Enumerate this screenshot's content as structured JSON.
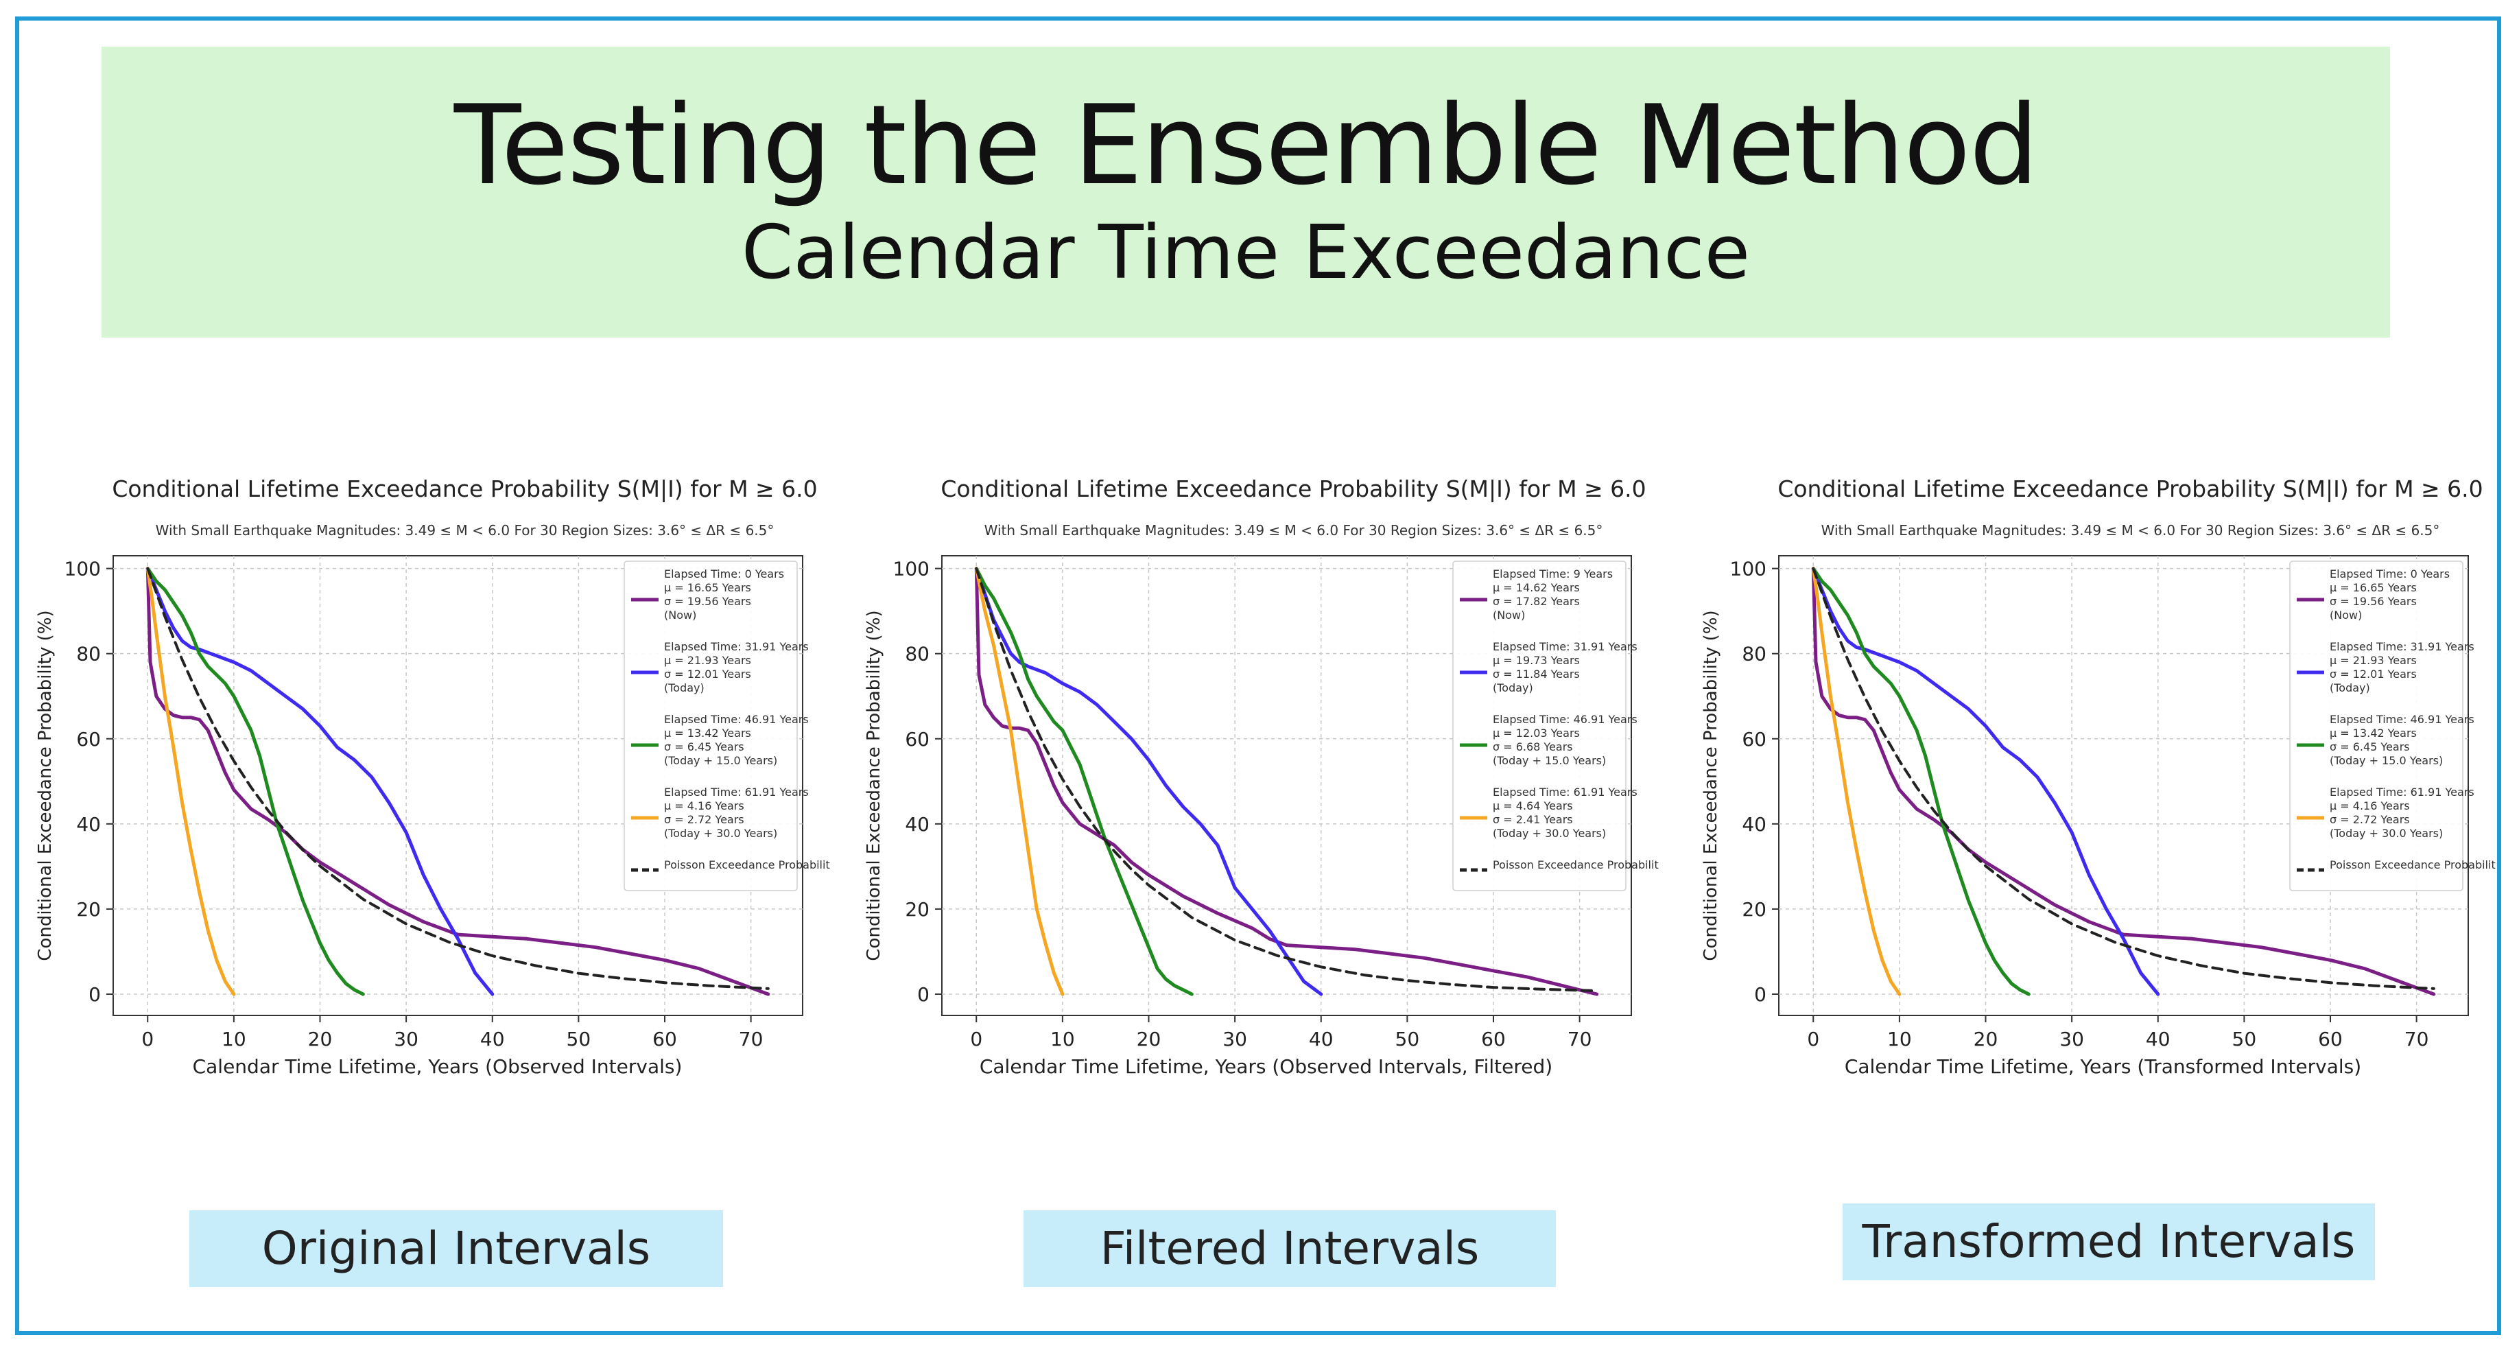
{
  "header": {
    "title": "Testing the Ensemble Method",
    "subtitle": "Calendar Time Exceedance"
  },
  "colors": {
    "banner": "#d6f5d2",
    "frame": "#1f9bd6",
    "label_box": "#c7ecfa",
    "purple": "#7b1f86",
    "blue": "#3f2bf0",
    "green": "#1f8a1f",
    "orange": "#f5a623",
    "poisson": "#222222"
  },
  "panels": [
    {
      "label": "Original Intervals"
    },
    {
      "label": "Filtered Intervals"
    },
    {
      "label": "Transformed Intervals"
    }
  ],
  "chart_data": [
    {
      "type": "line",
      "title": "Conditional Lifetime Exceedance Probability S(M|I) for M ≥ 6.0",
      "subtitle": "With Small Earthquake Magnitudes: 3.49 ≤ M < 6.0  For 30 Region Sizes: 3.6° ≤ ΔR ≤ 6.5°",
      "xlabel": "Calendar Time Lifetime, Years (Observed Intervals)",
      "ylabel": "Conditional Exceedance Probability (%)",
      "xlim": [
        -4,
        76
      ],
      "ylim": [
        -5,
        103
      ],
      "xticks": [
        0,
        10,
        20,
        30,
        40,
        50,
        60,
        70
      ],
      "yticks": [
        0,
        20,
        40,
        60,
        80,
        100
      ],
      "grid": true,
      "legend": "top-right",
      "series": [
        {
          "name": "Elapsed Time: 0 Years",
          "legend_lines": [
            "μ = 16.65 Years",
            "σ = 19.56 Years",
            "(Now)"
          ],
          "color": "purple",
          "dash": false,
          "x": [
            0,
            0.3,
            1,
            2,
            3,
            4,
            5,
            6,
            7,
            8,
            9,
            10,
            12,
            14,
            16,
            18,
            20,
            24,
            28,
            32,
            34,
            36,
            40,
            44,
            48,
            52,
            56,
            60,
            64,
            68,
            70,
            72
          ],
          "y": [
            100,
            78,
            70,
            67,
            65.5,
            65,
            65,
            64.5,
            62,
            57,
            52,
            48,
            43.5,
            41,
            38,
            34,
            31,
            26,
            21,
            17,
            15.5,
            14,
            13.5,
            13,
            12,
            11,
            9.5,
            8,
            6,
            3,
            1.5,
            0
          ]
        },
        {
          "name": "Elapsed Time: 31.91 Years",
          "legend_lines": [
            "μ = 21.93 Years",
            "σ = 12.01 Years",
            "(Today)"
          ],
          "color": "blue",
          "dash": false,
          "x": [
            0,
            1,
            2,
            3,
            4,
            5,
            6,
            8,
            10,
            12,
            14,
            16,
            18,
            20,
            22,
            24,
            26,
            28,
            30,
            32,
            34,
            36,
            38,
            40
          ],
          "y": [
            100,
            95,
            90,
            86,
            83,
            81.5,
            81,
            79.5,
            78,
            76,
            73,
            70,
            67,
            63,
            58,
            55,
            51,
            45,
            38,
            28,
            20,
            13,
            5,
            0
          ]
        },
        {
          "name": "Elapsed Time: 46.91 Years",
          "legend_lines": [
            "μ = 13.42 Years",
            "σ = 6.45 Years",
            "(Today + 15.0 Years)"
          ],
          "color": "green",
          "dash": false,
          "x": [
            0,
            1,
            2,
            3,
            4,
            5,
            6,
            7,
            8,
            9,
            10,
            11,
            12,
            13,
            14,
            15,
            16,
            17,
            18,
            19,
            20,
            21,
            22,
            23,
            24,
            25
          ],
          "y": [
            100,
            97,
            95,
            92,
            89,
            85,
            80,
            77,
            75,
            73,
            70,
            66,
            62,
            56,
            48,
            40,
            34,
            28,
            22,
            17,
            12,
            8,
            5,
            2.5,
            1,
            0
          ]
        },
        {
          "name": "Elapsed Time: 61.91 Years",
          "legend_lines": [
            "μ = 4.16 Years",
            "σ = 2.72 Years",
            "(Today + 30.0 Years)"
          ],
          "color": "orange",
          "dash": false,
          "x": [
            0,
            0.5,
            1,
            2,
            3,
            4,
            5,
            6,
            7,
            8,
            9,
            10
          ],
          "y": [
            100,
            93,
            85,
            70,
            58,
            45,
            34,
            24,
            15,
            8,
            3,
            0
          ]
        },
        {
          "name": "Poisson Exceedance Probability",
          "legend_lines": [],
          "color": "poisson",
          "dash": true,
          "x": [
            0,
            2,
            4,
            6,
            8,
            10,
            12,
            14,
            16,
            18,
            20,
            25,
            30,
            35,
            40,
            45,
            50,
            55,
            60,
            65,
            70,
            72
          ],
          "y": [
            100,
            88.7,
            78.6,
            69.7,
            61.8,
            54.8,
            48.6,
            43.1,
            38.2,
            33.9,
            30.1,
            22.3,
            16.5,
            12.2,
            9.0,
            6.7,
            4.9,
            3.7,
            2.7,
            2.0,
            1.5,
            1.3
          ]
        }
      ]
    },
    {
      "type": "line",
      "title": "Conditional Lifetime Exceedance Probability S(M|I) for M ≥ 6.0",
      "subtitle": "With Small Earthquake Magnitudes: 3.49 ≤ M < 6.0  For 30 Region Sizes: 3.6° ≤ ΔR ≤ 6.5°",
      "xlabel": "Calendar Time Lifetime, Years (Observed Intervals, Filtered)",
      "ylabel": "Conditional Exceedance Probability (%)",
      "xlim": [
        -4,
        76
      ],
      "ylim": [
        -5,
        103
      ],
      "xticks": [
        0,
        10,
        20,
        30,
        40,
        50,
        60,
        70
      ],
      "yticks": [
        0,
        20,
        40,
        60,
        80,
        100
      ],
      "grid": true,
      "legend": "top-right",
      "series": [
        {
          "name": "Elapsed Time: 9 Years",
          "legend_lines": [
            "μ = 14.62 Years",
            "σ = 17.82 Years",
            "(Now)"
          ],
          "color": "purple",
          "dash": false,
          "x": [
            0,
            0.3,
            1,
            2,
            3,
            4,
            5,
            6,
            7,
            8,
            9,
            10,
            12,
            14,
            16,
            18,
            20,
            24,
            28,
            32,
            34,
            36,
            40,
            44,
            48,
            52,
            56,
            60,
            64,
            68,
            70,
            72
          ],
          "y": [
            100,
            75,
            68,
            65,
            63,
            62.5,
            62.5,
            62,
            59,
            54,
            49,
            45,
            40,
            37.5,
            35,
            31,
            28,
            23,
            19,
            15.5,
            13,
            11.5,
            11,
            10.5,
            9.5,
            8.5,
            7,
            5.5,
            4,
            2,
            1,
            0
          ]
        },
        {
          "name": "Elapsed Time: 31.91 Years",
          "legend_lines": [
            "μ = 19.73 Years",
            "σ = 11.84 Years",
            "(Today)"
          ],
          "color": "blue",
          "dash": false,
          "x": [
            0,
            1,
            2,
            3,
            4,
            5,
            6,
            8,
            10,
            12,
            14,
            16,
            18,
            20,
            22,
            24,
            26,
            28,
            30,
            32,
            34,
            36,
            38,
            40
          ],
          "y": [
            100,
            94,
            88,
            84,
            80,
            78,
            77,
            75.5,
            73,
            71,
            68,
            64,
            60,
            55,
            49,
            44,
            40,
            35,
            25,
            20,
            15,
            9,
            3,
            0
          ]
        },
        {
          "name": "Elapsed Time: 46.91 Years",
          "legend_lines": [
            "μ = 12.03 Years",
            "σ = 6.68 Years",
            "(Today + 15.0 Years)"
          ],
          "color": "green",
          "dash": false,
          "x": [
            0,
            1,
            2,
            3,
            4,
            5,
            6,
            7,
            8,
            9,
            10,
            11,
            12,
            13,
            14,
            15,
            16,
            17,
            18,
            19,
            20,
            21,
            22,
            23,
            24,
            25
          ],
          "y": [
            100,
            96,
            93,
            89,
            85,
            80,
            74,
            70,
            67,
            64,
            62,
            58,
            54,
            48,
            42,
            36,
            31,
            26,
            21,
            16,
            11,
            6,
            3.5,
            2,
            1,
            0
          ]
        },
        {
          "name": "Elapsed Time: 61.91 Years",
          "legend_lines": [
            "μ = 4.64 Years",
            "σ = 2.41 Years",
            "(Today + 30.0 Years)"
          ],
          "color": "orange",
          "dash": false,
          "x": [
            0,
            0.5,
            1,
            2,
            3,
            4,
            5,
            6,
            7,
            8,
            9,
            10
          ],
          "y": [
            100,
            95,
            90,
            82,
            72,
            62,
            48,
            34,
            20,
            12,
            5,
            0
          ]
        },
        {
          "name": "Poisson Exceedance Probability",
          "legend_lines": [],
          "color": "poisson",
          "dash": true,
          "x": [
            0,
            2,
            4,
            6,
            8,
            10,
            12,
            14,
            16,
            18,
            20,
            25,
            30,
            35,
            40,
            45,
            50,
            55,
            60,
            65,
            70,
            72
          ],
          "y": [
            100,
            87.3,
            76.1,
            66.4,
            57.9,
            50.5,
            44.1,
            38.5,
            33.6,
            29.3,
            25.6,
            18.0,
            12.7,
            9.0,
            6.4,
            4.5,
            3.2,
            2.3,
            1.6,
            1.2,
            0.9,
            0.8
          ]
        }
      ]
    },
    {
      "type": "line",
      "title": "Conditional Lifetime Exceedance Probability S(M|I) for M ≥ 6.0",
      "subtitle": "With Small Earthquake Magnitudes: 3.49 ≤ M < 6.0  For 30 Region Sizes: 3.6° ≤ ΔR ≤ 6.5°",
      "xlabel": "Calendar Time Lifetime, Years (Transformed Intervals)",
      "ylabel": "Conditional Exceedance Probability (%)",
      "xlim": [
        -4,
        76
      ],
      "ylim": [
        -5,
        103
      ],
      "xticks": [
        0,
        10,
        20,
        30,
        40,
        50,
        60,
        70
      ],
      "yticks": [
        0,
        20,
        40,
        60,
        80,
        100
      ],
      "grid": true,
      "legend": "top-right",
      "series": [
        {
          "name": "Elapsed Time: 0 Years",
          "legend_lines": [
            "μ = 16.65 Years",
            "σ = 19.56 Years",
            "(Now)"
          ],
          "color": "purple",
          "dash": false,
          "x": [
            0,
            0.3,
            1,
            2,
            3,
            4,
            5,
            6,
            7,
            8,
            9,
            10,
            12,
            14,
            16,
            18,
            20,
            24,
            28,
            32,
            34,
            36,
            40,
            44,
            48,
            52,
            56,
            60,
            64,
            68,
            70,
            72
          ],
          "y": [
            100,
            78,
            70,
            67,
            65.5,
            65,
            65,
            64.5,
            62,
            57,
            52,
            48,
            43.5,
            41,
            38,
            34,
            31,
            26,
            21,
            17,
            15.5,
            14,
            13.5,
            13,
            12,
            11,
            9.5,
            8,
            6,
            3,
            1.5,
            0
          ]
        },
        {
          "name": "Elapsed Time: 31.91 Years",
          "legend_lines": [
            "μ = 21.93 Years",
            "σ = 12.01 Years",
            "(Today)"
          ],
          "color": "blue",
          "dash": false,
          "x": [
            0,
            1,
            2,
            3,
            4,
            5,
            6,
            8,
            10,
            12,
            14,
            16,
            18,
            20,
            22,
            24,
            26,
            28,
            30,
            32,
            34,
            36,
            38,
            40
          ],
          "y": [
            100,
            95,
            90,
            86,
            83,
            81.5,
            81,
            79.5,
            78,
            76,
            73,
            70,
            67,
            63,
            58,
            55,
            51,
            45,
            38,
            28,
            20,
            13,
            5,
            0
          ]
        },
        {
          "name": "Elapsed Time: 46.91 Years",
          "legend_lines": [
            "μ = 13.42 Years",
            "σ = 6.45 Years",
            "(Today + 15.0 Years)"
          ],
          "color": "green",
          "dash": false,
          "x": [
            0,
            1,
            2,
            3,
            4,
            5,
            6,
            7,
            8,
            9,
            10,
            11,
            12,
            13,
            14,
            15,
            16,
            17,
            18,
            19,
            20,
            21,
            22,
            23,
            24,
            25
          ],
          "y": [
            100,
            97,
            95,
            92,
            89,
            85,
            80,
            77,
            75,
            73,
            70,
            66,
            62,
            56,
            48,
            40,
            34,
            28,
            22,
            17,
            12,
            8,
            5,
            2.5,
            1,
            0
          ]
        },
        {
          "name": "Elapsed Time: 61.91 Years",
          "legend_lines": [
            "μ = 4.16 Years",
            "σ = 2.72 Years",
            "(Today + 30.0 Years)"
          ],
          "color": "orange",
          "dash": false,
          "x": [
            0,
            0.5,
            1,
            2,
            3,
            4,
            5,
            6,
            7,
            8,
            9,
            10
          ],
          "y": [
            100,
            93,
            85,
            70,
            58,
            45,
            34,
            24,
            15,
            8,
            3,
            0
          ]
        },
        {
          "name": "Poisson Exceedance Probability",
          "legend_lines": [],
          "color": "poisson",
          "dash": true,
          "x": [
            0,
            2,
            4,
            6,
            8,
            10,
            12,
            14,
            16,
            18,
            20,
            25,
            30,
            35,
            40,
            45,
            50,
            55,
            60,
            65,
            70,
            72
          ],
          "y": [
            100,
            88.7,
            78.6,
            69.7,
            61.8,
            54.8,
            48.6,
            43.1,
            38.2,
            33.9,
            30.1,
            22.3,
            16.5,
            12.2,
            9.0,
            6.7,
            4.9,
            3.7,
            2.7,
            2.0,
            1.5,
            1.3
          ]
        }
      ]
    }
  ]
}
